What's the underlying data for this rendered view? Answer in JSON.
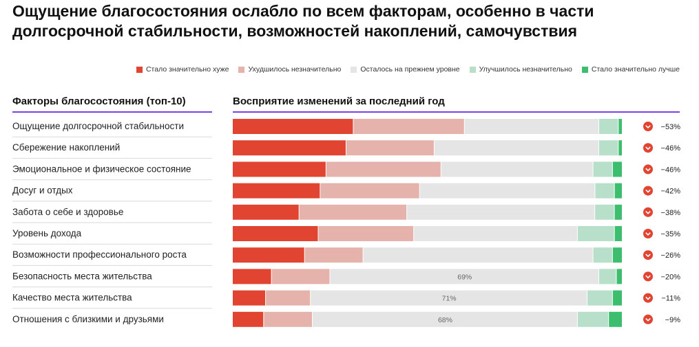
{
  "title": "Ощущение благосостояния ослабло по всем факторам, особенно в части долгосрочной стабильности, возможностей накоплений, самочувствия",
  "colors": {
    "much_worse": "#e24432",
    "slightly_worse": "#e6b3ac",
    "same": "#e5e5e5",
    "slightly_better": "#b7dfc9",
    "much_better": "#3dbe6e",
    "accent": "#7b3fe4",
    "indicator": "#e24432"
  },
  "legend": [
    {
      "label": "Стало значительно хуже",
      "color": "#e24432"
    },
    {
      "label": "Ухудшилось незначительно",
      "color": "#e6b3ac"
    },
    {
      "label": "Осталось на прежнем уровне",
      "color": "#e5e5e5"
    },
    {
      "label": "Улучшилось незначительно",
      "color": "#b7dfc9"
    },
    {
      "label": "Стало значительно лучше",
      "color": "#3dbe6e"
    }
  ],
  "columns": {
    "left": "Факторы благосостояния (топ-10)",
    "right": "Восприятие изменений за последний год"
  },
  "chart_data": {
    "type": "bar",
    "stacked": true,
    "orientation": "horizontal",
    "unit": "%",
    "categories": [
      "Ощущение долгосрочной стабильности",
      "Сбережение накоплений",
      "Эмоциональное и физическое состояние",
      "Досуг и отдых",
      "Забота о себе и здоровье",
      "Уровень дохода",
      "Возможности профессионального роста",
      "Безопасность места жительства",
      "Качество места жительства",
      "Отношения с близкими и друзьями"
    ],
    "series": [
      {
        "name": "Стало значительно хуже",
        "values": [
          31,
          29,
          24,
          22.5,
          17,
          22,
          18.5,
          10,
          8.5,
          8
        ]
      },
      {
        "name": "Ухудшилось незначительно",
        "values": [
          28.5,
          22.5,
          29.5,
          25.5,
          27.5,
          24.5,
          15,
          15,
          11.5,
          12.5
        ]
      },
      {
        "name": "Осталось на прежнем уровне",
        "values": [
          34.5,
          42,
          39,
          45,
          48,
          42,
          59,
          69,
          71,
          68
        ]
      },
      {
        "name": "Улучшилось незначительно",
        "values": [
          5,
          5,
          5,
          5,
          5,
          9.5,
          5,
          4.5,
          6.5,
          8
        ]
      },
      {
        "name": "Стало значительно лучше",
        "values": [
          1,
          1,
          2.5,
          2,
          2,
          2,
          2.5,
          1.5,
          2.5,
          3.5
        ]
      }
    ],
    "same_labels": [
      "",
      "",
      "",
      "",
      "",
      "",
      "",
      "69%",
      "71%",
      "68%"
    ],
    "deltas": [
      "−53%",
      "−46%",
      "−46%",
      "−42%",
      "−38%",
      "−35%",
      "−26%",
      "−20%",
      "−11%",
      "−9%"
    ],
    "xlim": [
      0,
      100
    ]
  }
}
